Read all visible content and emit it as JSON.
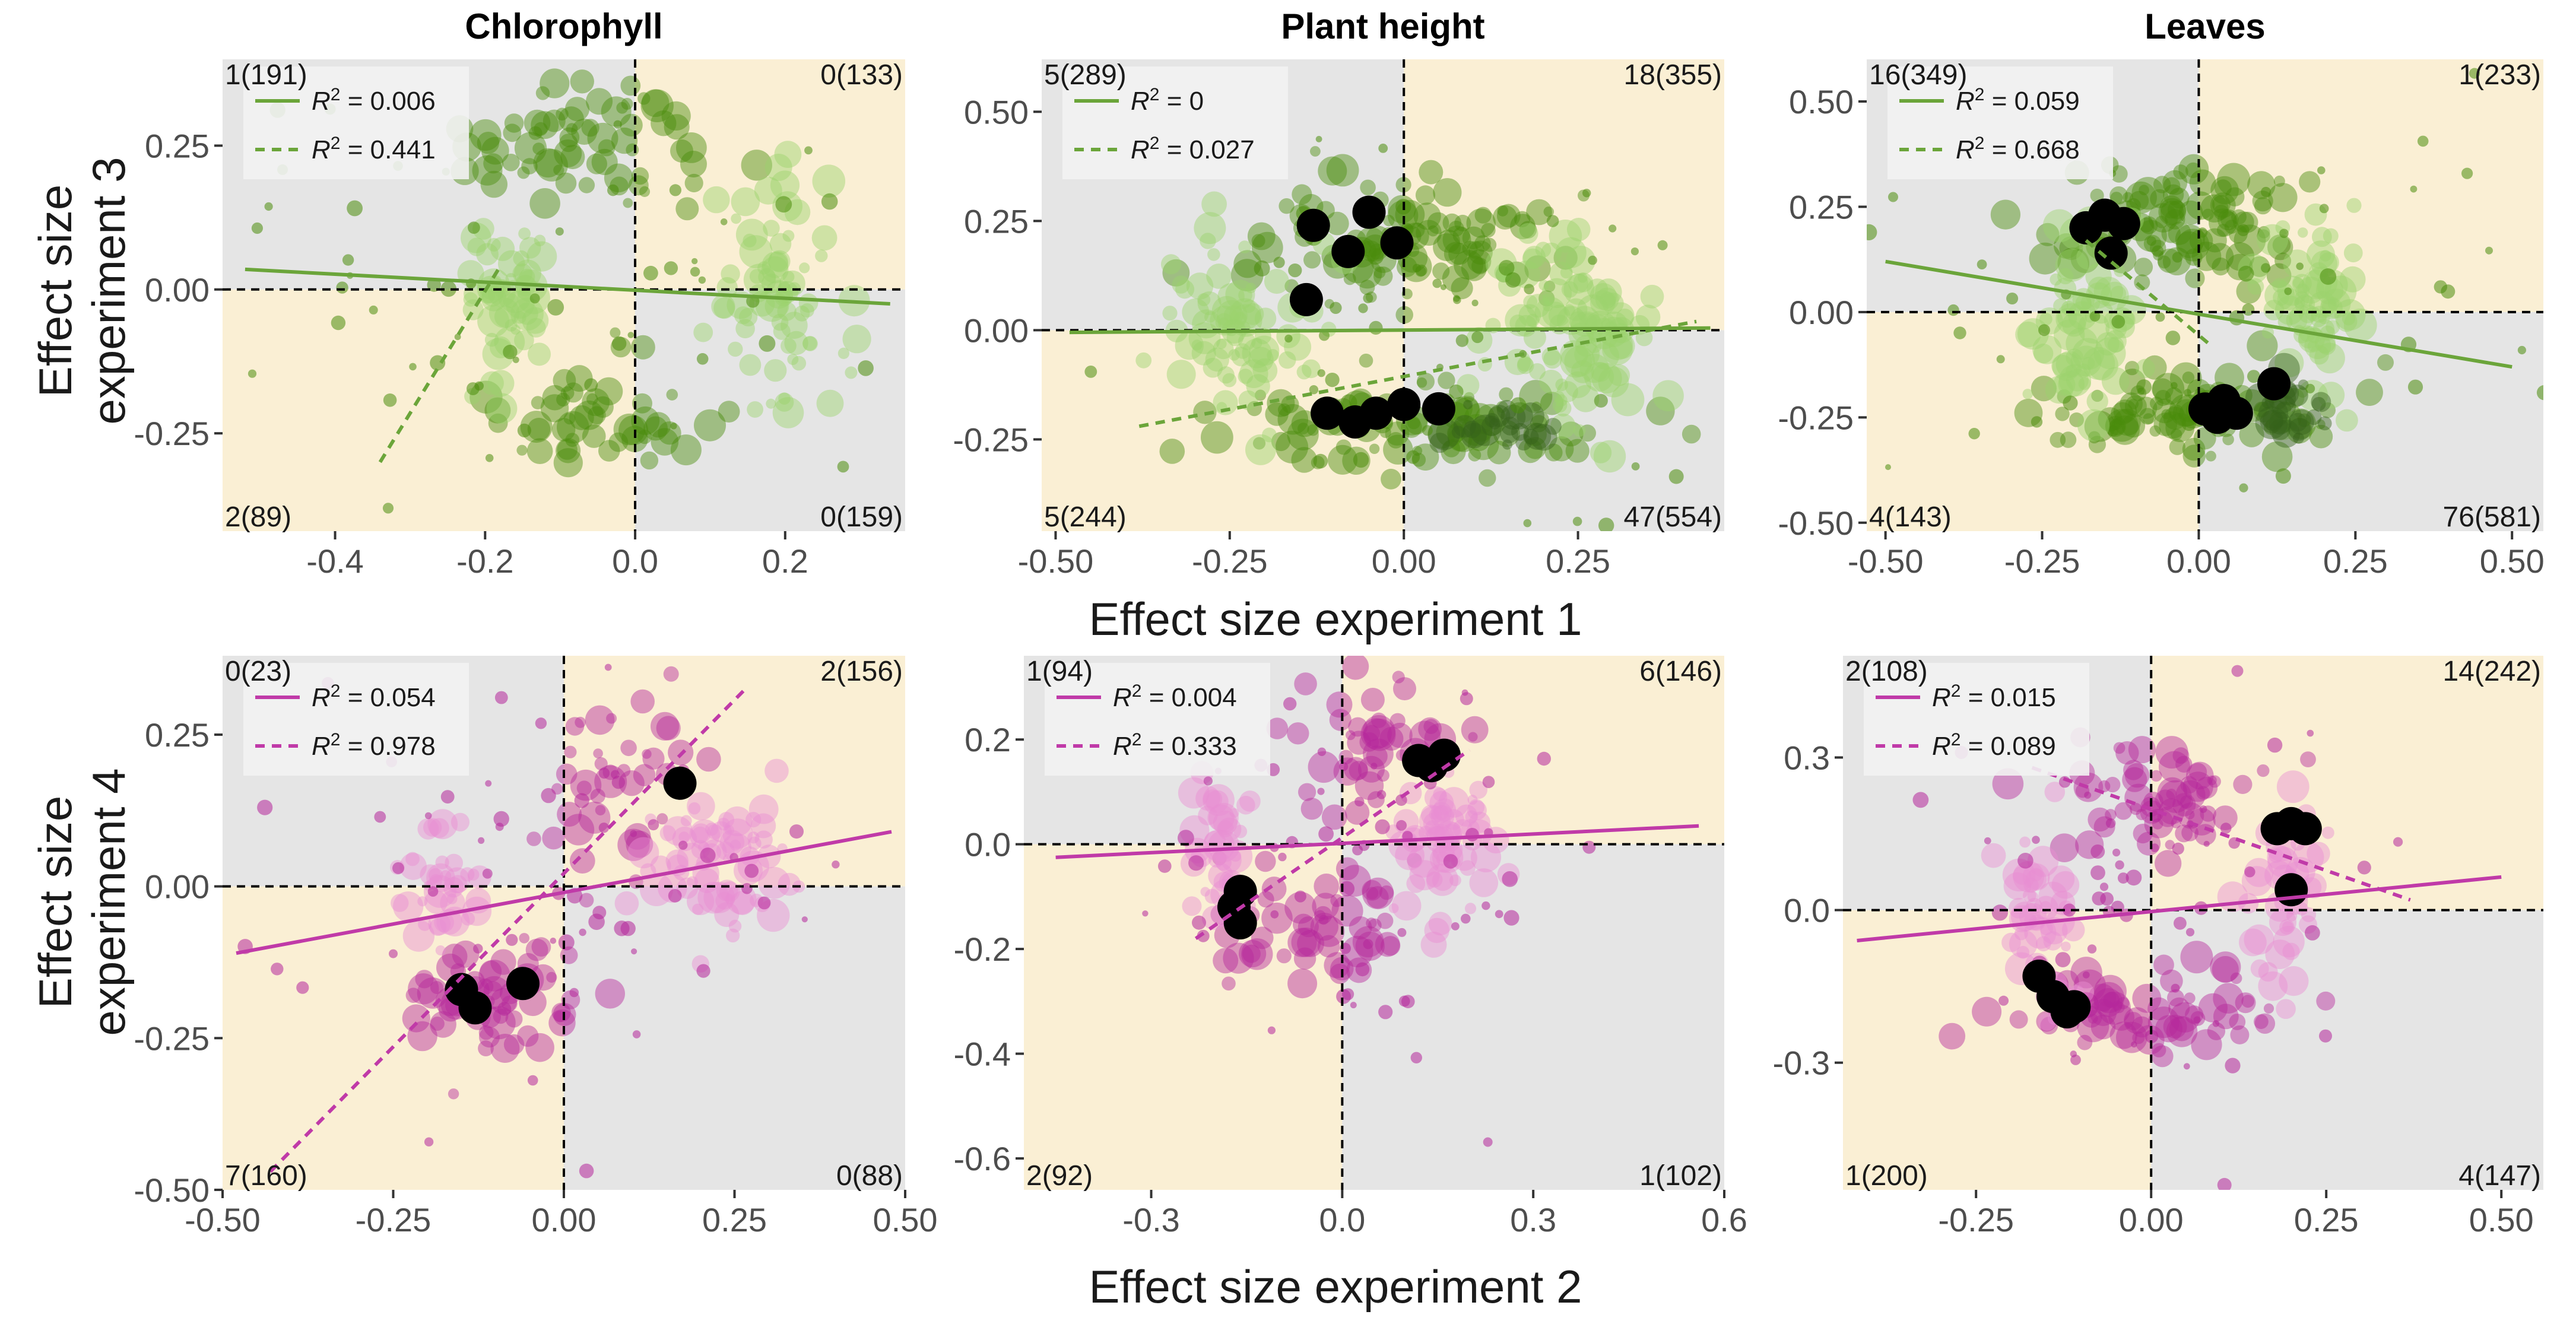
{
  "figure": {
    "xlabel_top": "Effect size experiment 1",
    "xlabel_bottom": "Effect size experiment 2",
    "ylabel_top": [
      "Effect size",
      "experiment 3"
    ],
    "ylabel_bottom": [
      "Effect size",
      "experiment 4"
    ],
    "quadrant_colors": {
      "grey": "#e5e5e5",
      "beige": "#faefd4"
    },
    "series_colors": {
      "green_light": "#9bd26c",
      "green": "#4a8c0b",
      "green_dark": "#35621a",
      "green_line": "#6ba53a",
      "pink_light": "#e98fd2",
      "pink": "#b5279b",
      "pink_dark": "#6d0f52",
      "pink_line": "#c03aa8",
      "highlight": "#000000"
    }
  },
  "chart_data": [
    {
      "type": "scatter",
      "title": "Chlorophyll",
      "row": 0,
      "col": 0,
      "xlim": [
        -0.55,
        0.36
      ],
      "ylim": [
        -0.42,
        0.4
      ],
      "xticks": [
        "-0.4",
        "-0.2",
        "0.0",
        "0.2"
      ],
      "xtick_values": [
        -0.4,
        -0.2,
        0.0,
        0.2
      ],
      "yticks": [
        "-0.25",
        "0.00",
        "0.25"
      ],
      "ytick_values": [
        -0.25,
        0.0,
        0.25
      ],
      "quadrant_counts": {
        "top_left": "1(191)",
        "top_right": "0(133)",
        "bottom_left": "2(89)",
        "bottom_right": "0(159)"
      },
      "palette": "green",
      "legend": [
        {
          "style": "solid",
          "r2": "0.006"
        },
        {
          "style": "dashed",
          "r2": "0.441"
        }
      ],
      "solid_line": [
        [
          -0.52,
          0.035
        ],
        [
          0.34,
          -0.025
        ]
      ],
      "dashed_line": [
        [
          -0.34,
          -0.3
        ],
        [
          -0.18,
          0.04
        ]
      ],
      "clusters": [
        {
          "x": -0.06,
          "y": 0.26,
          "sx": 0.08,
          "sy": 0.06,
          "n": 70,
          "color": "green"
        },
        {
          "x": -0.06,
          "y": -0.22,
          "sx": 0.08,
          "sy": 0.05,
          "n": 50,
          "color": "green"
        },
        {
          "x": -0.17,
          "y": 0.0,
          "sx": 0.03,
          "sy": 0.08,
          "n": 55,
          "color": "green_light"
        },
        {
          "x": 0.19,
          "y": 0.0,
          "sx": 0.04,
          "sy": 0.09,
          "n": 75,
          "color": "green_light"
        },
        {
          "x": -0.1,
          "y": 0.0,
          "sx": 0.25,
          "sy": 0.18,
          "n": 60,
          "color": "green",
          "small": true
        }
      ],
      "highlights": []
    },
    {
      "type": "scatter",
      "title": "Plant height",
      "row": 0,
      "col": 1,
      "xlim": [
        -0.52,
        0.46
      ],
      "ylim": [
        -0.46,
        0.62
      ],
      "xticks": [
        "-0.50",
        "-0.25",
        "0.00",
        "0.25"
      ],
      "xtick_values": [
        -0.5,
        -0.25,
        0.0,
        0.25
      ],
      "yticks": [
        "-0.25",
        "0.00",
        "0.25",
        "0.50"
      ],
      "ytick_values": [
        -0.25,
        0.0,
        0.25,
        0.5
      ],
      "quadrant_counts": {
        "top_left": "5(289)",
        "top_right": "18(355)",
        "bottom_left": "5(244)",
        "bottom_right": "47(554)"
      },
      "palette": "green",
      "legend": [
        {
          "style": "solid",
          "r2": "0"
        },
        {
          "style": "dashed",
          "r2": "0.027"
        }
      ],
      "solid_line": [
        [
          -0.48,
          -0.005
        ],
        [
          0.44,
          0.005
        ]
      ],
      "dashed_line": [
        [
          -0.38,
          -0.22
        ],
        [
          0.42,
          0.02
        ]
      ],
      "clusters": [
        {
          "x": 0.0,
          "y": 0.2,
          "sx": 0.13,
          "sy": 0.06,
          "n": 110,
          "color": "green"
        },
        {
          "x": 0.0,
          "y": -0.22,
          "sx": 0.13,
          "sy": 0.05,
          "n": 100,
          "color": "green"
        },
        {
          "x": -0.24,
          "y": 0.0,
          "sx": 0.05,
          "sy": 0.1,
          "n": 80,
          "color": "green_light"
        },
        {
          "x": 0.24,
          "y": 0.0,
          "sx": 0.06,
          "sy": 0.11,
          "n": 110,
          "color": "green_light"
        },
        {
          "x": 0.14,
          "y": -0.22,
          "sx": 0.04,
          "sy": 0.03,
          "n": 25,
          "color": "green_dark"
        },
        {
          "x": 0.0,
          "y": 0.0,
          "sx": 0.25,
          "sy": 0.25,
          "n": 60,
          "color": "green",
          "small": true
        }
      ],
      "highlights": [
        [
          -0.13,
          0.24
        ],
        [
          -0.08,
          0.18
        ],
        [
          -0.05,
          0.27
        ],
        [
          -0.01,
          0.2
        ],
        [
          -0.14,
          0.07
        ],
        [
          -0.11,
          -0.19
        ],
        [
          -0.07,
          -0.21
        ],
        [
          -0.04,
          -0.19
        ],
        [
          0.0,
          -0.17
        ],
        [
          0.05,
          -0.18
        ]
      ]
    },
    {
      "type": "scatter",
      "title": "Leaves",
      "row": 0,
      "col": 2,
      "xlim": [
        -0.53,
        0.55
      ],
      "ylim": [
        -0.52,
        0.6
      ],
      "xticks": [
        "-0.50",
        "-0.25",
        "0.00",
        "0.25",
        "0.50"
      ],
      "xtick_values": [
        -0.5,
        -0.25,
        0.0,
        0.25,
        0.5
      ],
      "yticks": [
        "-0.50",
        "-0.25",
        "0.00",
        "0.25",
        "0.50"
      ],
      "ytick_values": [
        -0.5,
        -0.25,
        0.0,
        0.25,
        0.5
      ],
      "quadrant_counts": {
        "top_left": "16(349)",
        "top_right": "1(233)",
        "bottom_left": "4(143)",
        "bottom_right": "76(581)"
      },
      "palette": "green",
      "legend": [
        {
          "style": "solid",
          "r2": "0.059"
        },
        {
          "style": "dashed",
          "r2": "0.668"
        }
      ],
      "solid_line": [
        [
          -0.5,
          0.12
        ],
        [
          0.5,
          -0.13
        ]
      ],
      "dashed_line": [
        [
          -0.18,
          0.17
        ],
        [
          0.02,
          -0.08
        ]
      ],
      "clusters": [
        {
          "x": -0.03,
          "y": 0.22,
          "sx": 0.1,
          "sy": 0.07,
          "n": 110,
          "color": "green"
        },
        {
          "x": 0.0,
          "y": -0.24,
          "sx": 0.12,
          "sy": 0.05,
          "n": 100,
          "color": "green"
        },
        {
          "x": -0.18,
          "y": -0.02,
          "sx": 0.04,
          "sy": 0.1,
          "n": 70,
          "color": "green_light"
        },
        {
          "x": 0.18,
          "y": 0.0,
          "sx": 0.04,
          "sy": 0.1,
          "n": 75,
          "color": "green_light"
        },
        {
          "x": 0.15,
          "y": -0.24,
          "sx": 0.04,
          "sy": 0.04,
          "n": 25,
          "color": "green_dark"
        },
        {
          "x": 0.0,
          "y": 0.0,
          "sx": 0.25,
          "sy": 0.25,
          "n": 60,
          "color": "green",
          "small": true
        }
      ],
      "highlights": [
        [
          -0.18,
          0.2
        ],
        [
          -0.15,
          0.23
        ],
        [
          -0.12,
          0.21
        ],
        [
          -0.14,
          0.14
        ],
        [
          0.01,
          -0.23
        ],
        [
          0.04,
          -0.21
        ],
        [
          0.06,
          -0.24
        ],
        [
          0.03,
          -0.25
        ],
        [
          0.12,
          -0.17
        ]
      ]
    },
    {
      "type": "scatter",
      "title": "",
      "row": 1,
      "col": 0,
      "xlim": [
        -0.5,
        0.5
      ],
      "ylim": [
        -0.5,
        0.38
      ],
      "xticks": [
        "-0.50",
        "-0.25",
        "0.00",
        "0.25",
        "0.50"
      ],
      "xtick_values": [
        -0.5,
        -0.25,
        0.0,
        0.25,
        0.5
      ],
      "yticks": [
        "-0.50",
        "-0.25",
        "0.00",
        "0.25"
      ],
      "ytick_values": [
        -0.5,
        -0.25,
        0.0,
        0.25
      ],
      "quadrant_counts": {
        "top_left": "0(23)",
        "top_right": "2(156)",
        "bottom_left": "7(160)",
        "bottom_right": "0(88)"
      },
      "palette": "pink",
      "legend": [
        {
          "style": "solid",
          "r2": "0.054"
        },
        {
          "style": "dashed",
          "r2": "0.978"
        }
      ],
      "solid_line": [
        [
          -0.48,
          -0.11
        ],
        [
          0.48,
          0.09
        ]
      ],
      "dashed_line": [
        [
          -0.43,
          -0.47
        ],
        [
          0.27,
          0.33
        ]
      ],
      "clusters": [
        {
          "x": -0.1,
          "y": -0.19,
          "sx": 0.07,
          "sy": 0.05,
          "n": 60,
          "color": "pink"
        },
        {
          "x": 0.07,
          "y": 0.18,
          "sx": 0.06,
          "sy": 0.07,
          "n": 40,
          "color": "pink"
        },
        {
          "x": -0.18,
          "y": 0.0,
          "sx": 0.03,
          "sy": 0.05,
          "n": 40,
          "color": "pink_light"
        },
        {
          "x": 0.22,
          "y": 0.04,
          "sx": 0.05,
          "sy": 0.06,
          "n": 75,
          "color": "pink_light"
        },
        {
          "x": 0.0,
          "y": 0.0,
          "sx": 0.22,
          "sy": 0.2,
          "n": 60,
          "color": "pink",
          "small": true
        }
      ],
      "highlights": [
        [
          -0.15,
          -0.17
        ],
        [
          -0.13,
          -0.2
        ],
        [
          -0.06,
          -0.16
        ],
        [
          0.17,
          0.17
        ]
      ]
    },
    {
      "type": "scatter",
      "title": "",
      "row": 1,
      "col": 1,
      "xlim": [
        -0.5,
        0.6
      ],
      "ylim": [
        -0.66,
        0.36
      ],
      "xticks": [
        "-0.3",
        "0.0",
        "0.3",
        "0.6"
      ],
      "xtick_values": [
        -0.3,
        0.0,
        0.3,
        0.6
      ],
      "yticks": [
        "-0.6",
        "-0.4",
        "-0.2",
        "0.0",
        "0.2"
      ],
      "ytick_values": [
        -0.6,
        -0.4,
        -0.2,
        0.0,
        0.2
      ],
      "quadrant_counts": {
        "top_left": "1(94)",
        "top_right": "6(146)",
        "bottom_left": "2(92)",
        "bottom_right": "1(102)"
      },
      "palette": "pink",
      "legend": [
        {
          "style": "solid",
          "r2": "0.004"
        },
        {
          "style": "dashed",
          "r2": "0.333"
        }
      ],
      "solid_line": [
        [
          -0.45,
          -0.025
        ],
        [
          0.56,
          0.035
        ]
      ],
      "dashed_line": [
        [
          -0.23,
          -0.18
        ],
        [
          0.2,
          0.18
        ]
      ],
      "clusters": [
        {
          "x": -0.03,
          "y": -0.17,
          "sx": 0.08,
          "sy": 0.05,
          "n": 55,
          "color": "pink"
        },
        {
          "x": 0.05,
          "y": 0.2,
          "sx": 0.08,
          "sy": 0.06,
          "n": 45,
          "color": "pink"
        },
        {
          "x": -0.2,
          "y": 0.0,
          "sx": 0.03,
          "sy": 0.07,
          "n": 40,
          "color": "pink_light"
        },
        {
          "x": 0.17,
          "y": 0.02,
          "sx": 0.04,
          "sy": 0.08,
          "n": 70,
          "color": "pink_light"
        },
        {
          "x": 0.0,
          "y": -0.05,
          "sx": 0.2,
          "sy": 0.2,
          "n": 60,
          "color": "pink",
          "small": true
        }
      ],
      "highlights": [
        [
          -0.16,
          -0.09
        ],
        [
          -0.17,
          -0.12
        ],
        [
          -0.16,
          -0.15
        ],
        [
          0.12,
          0.16
        ],
        [
          0.16,
          0.17
        ],
        [
          0.14,
          0.15
        ]
      ]
    },
    {
      "type": "scatter",
      "title": "",
      "row": 1,
      "col": 2,
      "xlim": [
        -0.44,
        0.56
      ],
      "ylim": [
        -0.55,
        0.5
      ],
      "xticks": [
        "-0.25",
        "0.00",
        "0.25",
        "0.50"
      ],
      "xtick_values": [
        -0.25,
        0.0,
        0.25,
        0.5
      ],
      "yticks": [
        "-0.3",
        "0.0",
        "0.3"
      ],
      "ytick_values": [
        -0.3,
        0.0,
        0.3
      ],
      "quadrant_counts": {
        "top_left": "2(108)",
        "top_right": "14(242)",
        "bottom_left": "1(200)",
        "bottom_right": "4(147)"
      },
      "palette": "pink",
      "legend": [
        {
          "style": "solid",
          "r2": "0.015"
        },
        {
          "style": "dashed",
          "r2": "0.089"
        }
      ],
      "solid_line": [
        [
          -0.42,
          -0.06
        ],
        [
          0.5,
          0.065
        ]
      ],
      "dashed_line": [
        [
          -0.17,
          0.28
        ],
        [
          0.37,
          0.02
        ]
      ],
      "clusters": [
        {
          "x": 0.02,
          "y": 0.22,
          "sx": 0.07,
          "sy": 0.06,
          "n": 65,
          "color": "pink"
        },
        {
          "x": -0.03,
          "y": -0.2,
          "sx": 0.1,
          "sy": 0.04,
          "n": 70,
          "color": "pink"
        },
        {
          "x": -0.16,
          "y": -0.02,
          "sx": 0.03,
          "sy": 0.08,
          "n": 50,
          "color": "pink_light"
        },
        {
          "x": 0.19,
          "y": 0.0,
          "sx": 0.03,
          "sy": 0.08,
          "n": 45,
          "color": "pink_light"
        },
        {
          "x": 0.0,
          "y": 0.0,
          "sx": 0.2,
          "sy": 0.22,
          "n": 60,
          "color": "pink",
          "small": true
        }
      ],
      "highlights": [
        [
          0.18,
          0.16
        ],
        [
          0.2,
          0.17
        ],
        [
          0.22,
          0.16
        ],
        [
          0.2,
          0.04
        ],
        [
          -0.16,
          -0.13
        ],
        [
          -0.14,
          -0.17
        ],
        [
          -0.12,
          -0.2
        ],
        [
          -0.11,
          -0.19
        ]
      ]
    }
  ]
}
